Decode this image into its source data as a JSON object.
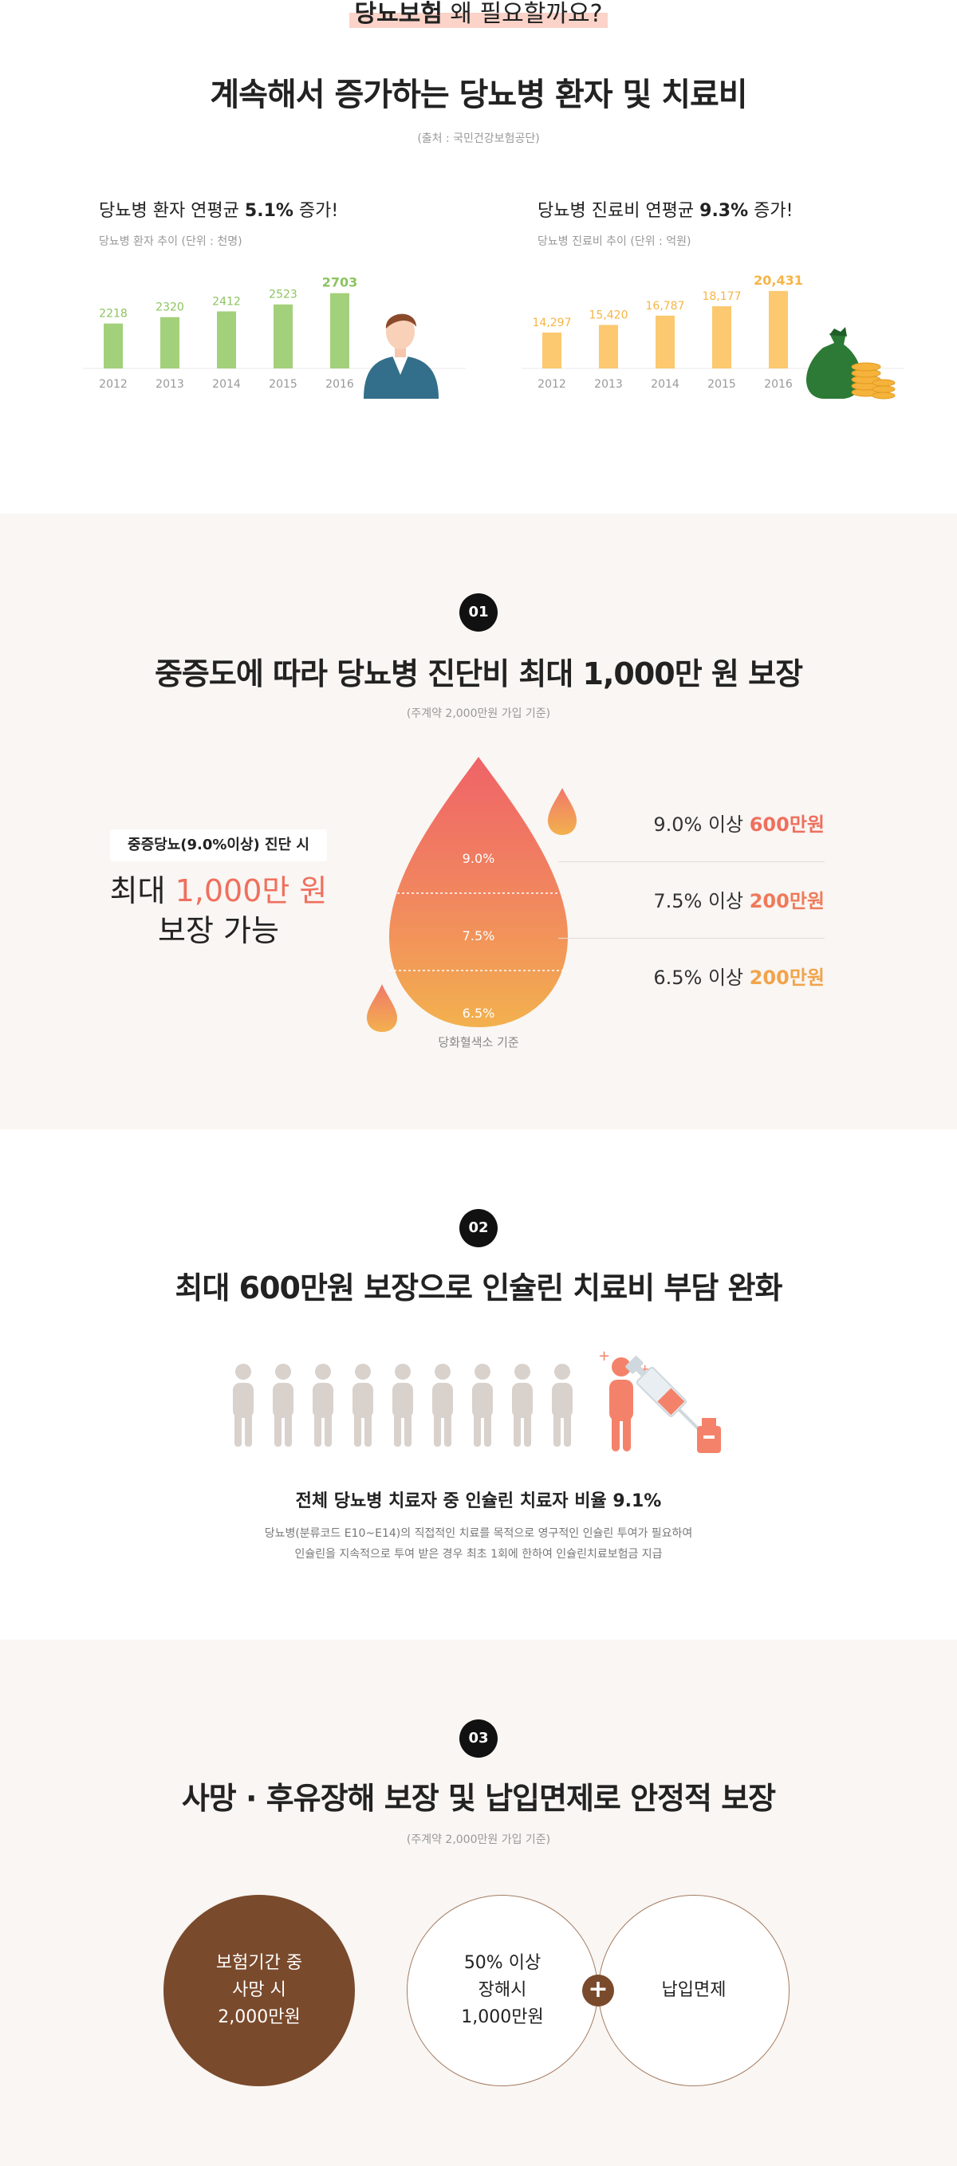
{
  "intro": {
    "highlight_bold": "당뇨보험",
    "highlight_rest": " 왜 필요할까요?",
    "title": "계속해서 증가하는 당뇨병 환자 및 치료비",
    "source": "(출처 : 국민건강보험공단)"
  },
  "colors": {
    "green": "#a3d07a",
    "yellow": "#fcc870",
    "coral": "#ef6f5e",
    "orange": "#f2a34a",
    "brown": "#7a4a2c",
    "badge": "#111111"
  },
  "chart_data": [
    {
      "type": "bar",
      "title_prefix": "당뇨병 환자 연평균 ",
      "title_highlight": "5.1%",
      "title_suffix": " 증가!",
      "subtitle": "당뇨병 환자 추이 (단위 : 천명)",
      "categories": [
        "2012",
        "2013",
        "2014",
        "2015",
        "2016"
      ],
      "values": [
        2218,
        2320,
        2412,
        2523,
        2703
      ],
      "value_labels": [
        "2218",
        "2320",
        "2412",
        "2523",
        "2703"
      ],
      "ylim": [
        1500,
        2800
      ],
      "color": "#a3d07a",
      "illustration": "person-icon"
    },
    {
      "type": "bar",
      "title_prefix": "당뇨병 진료비 연평균 ",
      "title_highlight": "9.3%",
      "title_suffix": " 증가!",
      "subtitle": "당뇨병 진료비 추이 (단위 : 억원)",
      "categories": [
        "2012",
        "2013",
        "2014",
        "2015",
        "2016"
      ],
      "values": [
        14297,
        15420,
        16787,
        18177,
        20431
      ],
      "value_labels": [
        "14,297",
        "15,420",
        "16,787",
        "18,177",
        "20,431"
      ],
      "ylim": [
        9000,
        21000
      ],
      "color": "#fcc870",
      "illustration": "money-bag-icon"
    }
  ],
  "section1": {
    "badge": "01",
    "title": "중증도에 따라 당뇨병 진단비 최대 1,000만 원 보장",
    "note": "(주계약 2,000만원 가입 기준)",
    "diag_label": "중증당뇨(9.0%이상) 진단 시",
    "max_prefix": "최대 ",
    "max_amount": "1,000만 원",
    "max_suffix": "보장 가능",
    "drop_levels": [
      "9.0%",
      "7.5%",
      "6.5%"
    ],
    "drop_basis": "당화혈색소 기준",
    "levels": [
      {
        "threshold": "9.0% 이상 ",
        "amount": "600만원",
        "color": "#ef6f5e"
      },
      {
        "threshold": "7.5% 이상 ",
        "amount": "200만원",
        "color": "#ef7a5a"
      },
      {
        "threshold": "6.5% 이상 ",
        "amount": "200만원",
        "color": "#f2a34a"
      }
    ]
  },
  "section2": {
    "badge": "02",
    "title": "최대 600만원 보장으로 인슐린 치료비 부담 완화",
    "headline": "전체 당뇨병 치료자 중 인슐린 치료자 비율 9.1%",
    "desc_line1": "당뇨병(분류코드 E10~E14)의 직접적인 치료를 목적으로 영구적인 인슐린 투여가 필요하여",
    "desc_line2": "인슐린을 지속적으로 투여 받은 경우  최초 1회에 한하여 인슐린치료보험금 지급",
    "people_ratio": 0.091
  },
  "section3": {
    "badge": "03",
    "title": "사망 · 후유장해 보장 및 납입면제로 안정적 보장",
    "note": "(주계약 2,000만원 가입 기준)",
    "circle1": [
      "보험기간 중",
      "사망 시",
      "2,000만원"
    ],
    "circle2": [
      "50% 이상",
      "장해시",
      "1,000만원"
    ],
    "plus": "+",
    "circle3": "납입면제"
  }
}
